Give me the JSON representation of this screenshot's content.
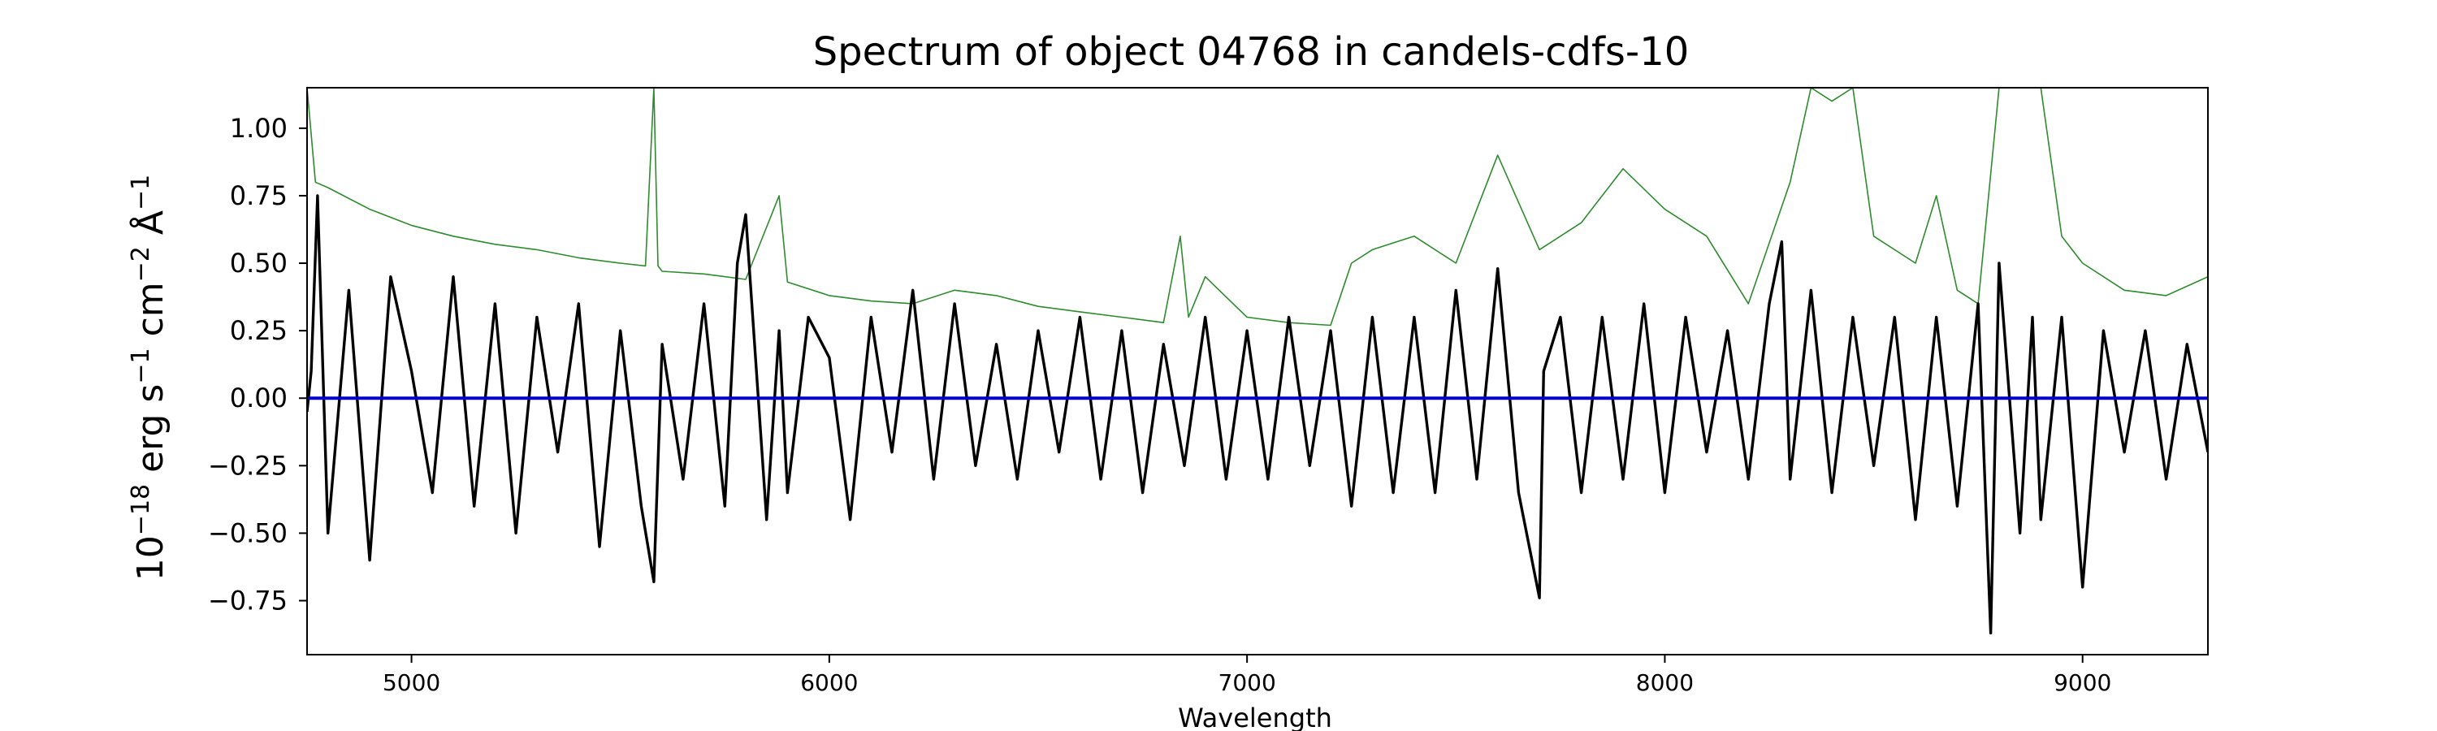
{
  "chart_data": {
    "type": "line",
    "title": "Spectrum of object 04768 in candels-cdfs-10",
    "xlabel": "Wavelength",
    "ylabel": {
      "base": "10",
      "exp": "−18",
      "text_1": " erg s",
      "exp_1": "−1",
      "text_2": " cm",
      "exp_2": "−2",
      "text_3": " Å",
      "exp_3": "−1"
    },
    "xlim": [
      4750,
      9300
    ],
    "ylim": [
      -0.95,
      1.15
    ],
    "x_ticks": [
      5000,
      6000,
      7000,
      8000,
      9000
    ],
    "x_tick_labels": [
      "5000",
      "6000",
      "7000",
      "8000",
      "9000"
    ],
    "y_ticks": [
      1.0,
      0.75,
      0.5,
      0.25,
      0.0,
      -0.25,
      -0.5,
      -0.75
    ],
    "y_tick_labels": [
      "1.00",
      "0.75",
      "0.50",
      "0.25",
      "0.00",
      "−0.25",
      "−0.50",
      "−0.75"
    ],
    "grid": false,
    "series": [
      {
        "role": "error",
        "color": "#2e8b2e",
        "x": [
          4750,
          4770,
          4800,
          4900,
          5000,
          5100,
          5200,
          5300,
          5400,
          5500,
          5560,
          5580,
          5590,
          5600,
          5700,
          5800,
          5880,
          5900,
          6000,
          6100,
          6200,
          6300,
          6400,
          6500,
          6600,
          6700,
          6800,
          6840,
          6860,
          6900,
          7000,
          7100,
          7200,
          7250,
          7300,
          7400,
          7500,
          7600,
          7700,
          7800,
          7900,
          8000,
          8100,
          8200,
          8300,
          8350,
          8400,
          8450,
          8500,
          8600,
          8650,
          8700,
          8750,
          8800,
          8850,
          8900,
          8950,
          9000,
          9100,
          9200,
          9300
        ],
        "values": [
          1.15,
          0.8,
          0.78,
          0.7,
          0.64,
          0.6,
          0.57,
          0.55,
          0.52,
          0.5,
          0.49,
          1.15,
          0.49,
          0.47,
          0.46,
          0.44,
          0.75,
          0.43,
          0.38,
          0.36,
          0.35,
          0.4,
          0.38,
          0.34,
          0.32,
          0.3,
          0.28,
          0.6,
          0.3,
          0.45,
          0.3,
          0.28,
          0.27,
          0.5,
          0.55,
          0.6,
          0.5,
          0.9,
          0.55,
          0.65,
          0.85,
          0.7,
          0.6,
          0.35,
          0.8,
          1.15,
          1.1,
          1.15,
          0.6,
          0.5,
          0.75,
          0.4,
          0.35,
          1.15,
          1.15,
          1.15,
          0.6,
          0.5,
          0.4,
          0.38,
          0.45
        ]
      },
      {
        "role": "flux",
        "color": "#000000",
        "x": [
          4750,
          4760,
          4775,
          4800,
          4850,
          4900,
          4950,
          5000,
          5050,
          5100,
          5150,
          5200,
          5250,
          5300,
          5350,
          5400,
          5450,
          5500,
          5550,
          5580,
          5600,
          5650,
          5700,
          5750,
          5780,
          5800,
          5850,
          5880,
          5900,
          5950,
          6000,
          6050,
          6100,
          6150,
          6200,
          6250,
          6300,
          6350,
          6400,
          6450,
          6500,
          6550,
          6600,
          6650,
          6700,
          6750,
          6800,
          6850,
          6900,
          6950,
          7000,
          7050,
          7100,
          7150,
          7200,
          7250,
          7300,
          7350,
          7400,
          7450,
          7500,
          7550,
          7600,
          7650,
          7700,
          7710,
          7750,
          7800,
          7850,
          7900,
          7950,
          8000,
          8050,
          8100,
          8150,
          8200,
          8250,
          8280,
          8300,
          8350,
          8400,
          8450,
          8500,
          8550,
          8600,
          8650,
          8700,
          8750,
          8780,
          8800,
          8850,
          8880,
          8900,
          8950,
          9000,
          9050,
          9100,
          9150,
          9200,
          9250,
          9300
        ],
        "values": [
          -0.05,
          0.1,
          0.75,
          -0.5,
          0.4,
          -0.6,
          0.45,
          0.1,
          -0.35,
          0.45,
          -0.4,
          0.35,
          -0.5,
          0.3,
          -0.2,
          0.35,
          -0.55,
          0.25,
          -0.4,
          -0.68,
          0.2,
          -0.3,
          0.35,
          -0.4,
          0.5,
          0.68,
          -0.45,
          0.25,
          -0.35,
          0.3,
          0.15,
          -0.45,
          0.3,
          -0.2,
          0.4,
          -0.3,
          0.35,
          -0.25,
          0.2,
          -0.3,
          0.25,
          -0.2,
          0.3,
          -0.3,
          0.25,
          -0.35,
          0.2,
          -0.25,
          0.3,
          -0.3,
          0.25,
          -0.3,
          0.3,
          -0.25,
          0.25,
          -0.4,
          0.3,
          -0.35,
          0.3,
          -0.35,
          0.4,
          -0.3,
          0.48,
          -0.35,
          -0.74,
          0.1,
          0.3,
          -0.35,
          0.3,
          -0.3,
          0.35,
          -0.35,
          0.3,
          -0.2,
          0.25,
          -0.3,
          0.35,
          0.58,
          -0.3,
          0.4,
          -0.35,
          0.3,
          -0.25,
          0.3,
          -0.45,
          0.3,
          -0.4,
          0.35,
          -0.87,
          0.5,
          -0.5,
          0.3,
          -0.45,
          0.3,
          -0.7,
          0.25,
          -0.2,
          0.25,
          -0.3,
          0.2,
          -0.2
        ]
      },
      {
        "role": "zero",
        "color": "#0000cc",
        "x": [
          4750,
          9300
        ],
        "values": [
          0,
          0
        ]
      }
    ]
  }
}
